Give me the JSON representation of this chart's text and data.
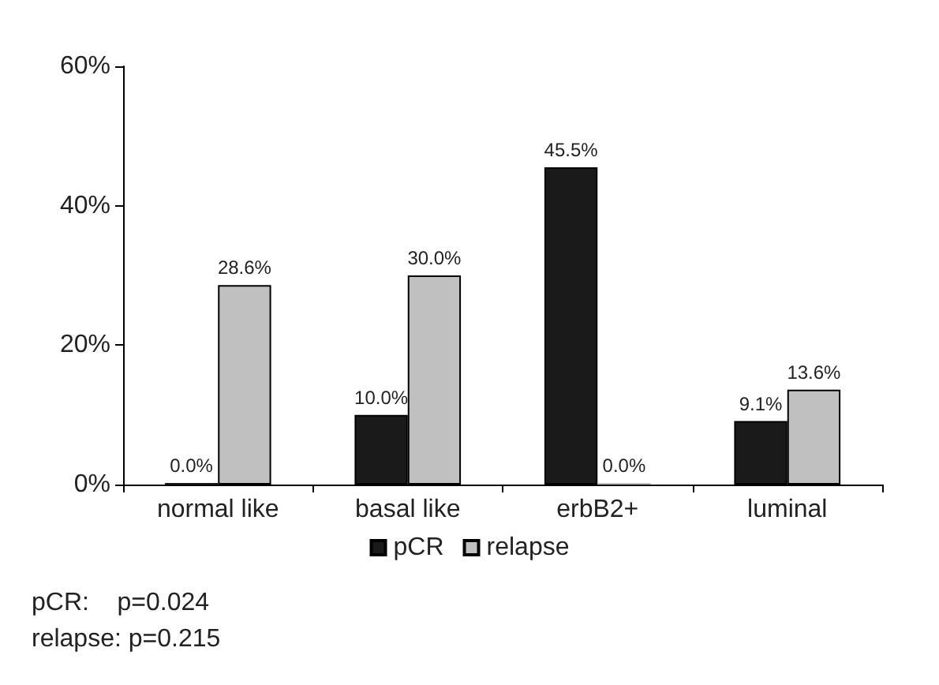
{
  "chart_data": {
    "type": "bar",
    "categories": [
      "normal like",
      "basal like",
      "erbB2+",
      "luminal"
    ],
    "series": [
      {
        "name": "pCR",
        "color": "#1a1a1a",
        "values": [
          0.0,
          10.0,
          45.5,
          9.1
        ],
        "value_labels": [
          "0.0%",
          "10.0%",
          "45.5%",
          "9.1%"
        ]
      },
      {
        "name": "relapse",
        "color": "#c0c0c0",
        "values": [
          28.6,
          30.0,
          0.0,
          13.6
        ],
        "value_labels": [
          "28.6%",
          "30.0%",
          "0.0%",
          "13.6%"
        ]
      }
    ],
    "ylim": [
      0,
      60
    ],
    "yticks": [
      {
        "value": 0,
        "label": "0%"
      },
      {
        "value": 20,
        "label": "20%"
      },
      {
        "value": 40,
        "label": "40%"
      },
      {
        "value": 60,
        "label": "60%"
      }
    ],
    "grid": false,
    "legend": "bottom",
    "annotations": [
      "pCR:    p=0.024",
      "relapse: p=0.215"
    ]
  }
}
